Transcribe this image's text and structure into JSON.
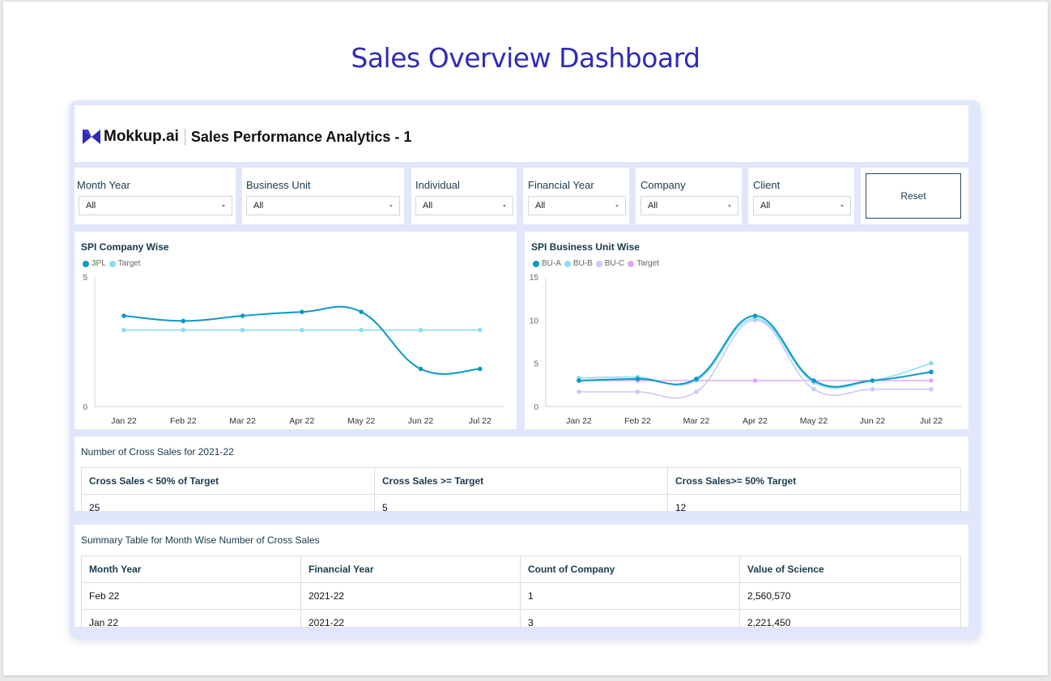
{
  "page_title": "Sales Overview Dashboard",
  "header": {
    "logo_text": "Mokkup.ai",
    "report_title": "Sales Performance Analytics - 1"
  },
  "filters": [
    {
      "label": "Month Year",
      "value": "All"
    },
    {
      "label": "Business Unit",
      "value": "All"
    },
    {
      "label": "Individual",
      "value": "All"
    },
    {
      "label": "Financial Year",
      "value": "All"
    },
    {
      "label": "Company",
      "value": "All"
    },
    {
      "label": "Client",
      "value": "All"
    }
  ],
  "reset_label": "Reset",
  "chart_data": [
    {
      "type": "line",
      "title": "SPI Company Wise",
      "categories": [
        "Jan 22",
        "Feb 22",
        "Mar 22",
        "Apr 22",
        "May 22",
        "Jun 22",
        "Jul 22"
      ],
      "ylim": [
        0,
        5
      ],
      "yticks": [
        0,
        5
      ],
      "series": [
        {
          "name": "3PL",
          "color": "#0a9ac4",
          "values": [
            3.5,
            3.3,
            3.5,
            3.65,
            3.65,
            1.45,
            1.45
          ]
        },
        {
          "name": "Target",
          "color": "#8ddcf6",
          "values": [
            2.95,
            2.95,
            2.95,
            2.95,
            2.95,
            2.95,
            2.95
          ]
        }
      ],
      "legend": "top-left",
      "grid": false
    },
    {
      "type": "line",
      "title": "SPI Business Unit Wise",
      "categories": [
        "Jan 22",
        "Feb 22",
        "Mar 22",
        "Apr 22",
        "May 22",
        "Jun 22",
        "Jul 22"
      ],
      "ylim": [
        0,
        15
      ],
      "yticks": [
        0,
        5,
        10,
        15
      ],
      "series": [
        {
          "name": "BU-A",
          "color": "#0a9ac4",
          "values": [
            3,
            3.2,
            3.2,
            10.5,
            3,
            3,
            4
          ]
        },
        {
          "name": "BU-B",
          "color": "#8ddcf6",
          "values": [
            3.3,
            3.4,
            3.0,
            10.2,
            2.8,
            3.0,
            5.0
          ]
        },
        {
          "name": "BU-C",
          "color": "#c6cdf5",
          "values": [
            1.7,
            1.7,
            1.7,
            10.0,
            2.0,
            2.0,
            2.0
          ]
        },
        {
          "name": "Target",
          "color": "#e1a7f5",
          "values": [
            3,
            3,
            3,
            3,
            3,
            3,
            3
          ]
        }
      ],
      "legend": "top-left",
      "grid": false
    }
  ],
  "cross_sales": {
    "title": "Number of Cross Sales for 2021-22",
    "headers": [
      "Cross Sales < 50% of Target",
      "Cross Sales >= Target",
      "Cross Sales>= 50% Target"
    ],
    "values": [
      "25",
      "5",
      "12"
    ]
  },
  "summary": {
    "title": "Summary Table for Month Wise Number of Cross Sales",
    "headers": [
      "Month Year",
      "Financial Year",
      "Count of Company",
      "Value of Science"
    ],
    "rows": [
      [
        "Feb 22",
        "2021-22",
        "1",
        "2,560,570"
      ],
      [
        "Jan 22",
        "2021-22",
        "3",
        "2,221,450"
      ]
    ]
  }
}
